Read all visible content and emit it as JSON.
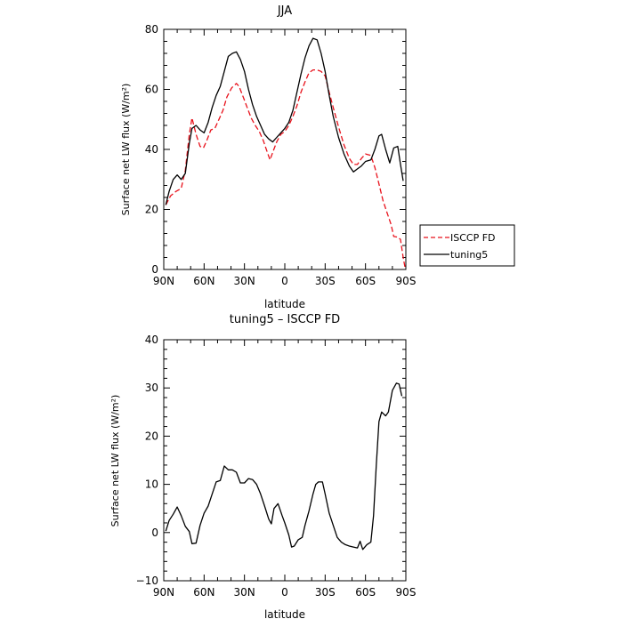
{
  "chart_data": [
    {
      "type": "line",
      "title": "JJA",
      "xlabel": "latitude",
      "ylabel": "Surface net LW flux (W/m²)",
      "xlim": [
        90,
        -90
      ],
      "ylim": [
        0,
        80
      ],
      "x_ticks": [
        90,
        60,
        30,
        0,
        -30,
        -60,
        -90
      ],
      "x_tick_labels": [
        "90N",
        "60N",
        "30N",
        "0",
        "30S",
        "60S",
        "90S"
      ],
      "y_ticks": [
        0,
        20,
        40,
        60,
        80
      ],
      "y_tick_labels": [
        "0",
        "20",
        "40",
        "60",
        "80"
      ],
      "legend": "outside-right",
      "series": [
        {
          "name": "ISCCP FD",
          "color": "#e8111b",
          "dash": true,
          "points": [
            [
              88.5,
              21.5
            ],
            [
              85,
              24.5
            ],
            [
              81,
              26
            ],
            [
              77,
              27
            ],
            [
              74,
              33
            ],
            [
              71,
              45
            ],
            [
              69,
              50.5
            ],
            [
              66,
              45
            ],
            [
              63,
              41
            ],
            [
              60.5,
              40.5
            ],
            [
              58,
              43
            ],
            [
              55,
              46.5
            ],
            [
              52,
              47
            ],
            [
              49,
              50
            ],
            [
              46,
              53
            ],
            [
              43,
              57.5
            ],
            [
              39.5,
              60.5
            ],
            [
              36,
              62
            ],
            [
              34,
              61
            ],
            [
              31,
              57.5
            ],
            [
              28,
              54
            ],
            [
              25,
              50.5
            ],
            [
              22,
              48
            ],
            [
              19,
              46
            ],
            [
              16,
              43
            ],
            [
              13,
              39
            ],
            [
              11,
              36.5
            ],
            [
              9,
              39
            ],
            [
              6,
              42.5
            ],
            [
              3,
              45
            ],
            [
              0,
              46
            ],
            [
              -3,
              48
            ],
            [
              -6,
              51
            ],
            [
              -9,
              54.5
            ],
            [
              -12,
              59
            ],
            [
              -15,
              62.5
            ],
            [
              -18,
              65.5
            ],
            [
              -21,
              66.5
            ],
            [
              -24,
              66.5
            ],
            [
              -27,
              66
            ],
            [
              -30,
              64.5
            ],
            [
              -33,
              59
            ],
            [
              -36,
              54
            ],
            [
              -40,
              47.5
            ],
            [
              -44,
              41.5
            ],
            [
              -48,
              37
            ],
            [
              -51,
              35
            ],
            [
              -54,
              35
            ],
            [
              -57,
              37
            ],
            [
              -60,
              38.5
            ],
            [
              -64,
              38
            ],
            [
              -67,
              34
            ],
            [
              -70,
              28.5
            ],
            [
              -73,
              23
            ],
            [
              -76,
              19
            ],
            [
              -79,
              15
            ],
            [
              -81,
              11
            ],
            [
              -84,
              10.8
            ],
            [
              -86,
              10
            ],
            [
              -88,
              4
            ],
            [
              -89.5,
              0.5
            ]
          ]
        },
        {
          "name": "tuning5",
          "color": "#000000",
          "dash": false,
          "points": [
            [
              88.5,
              21.5
            ],
            [
              86,
              26
            ],
            [
              83,
              30
            ],
            [
              80,
              31.5
            ],
            [
              77,
              30
            ],
            [
              74,
              32
            ],
            [
              71,
              42
            ],
            [
              69,
              47
            ],
            [
              66,
              48
            ],
            [
              63,
              46.5
            ],
            [
              60,
              45.5
            ],
            [
              57,
              49
            ],
            [
              54,
              54
            ],
            [
              51,
              58
            ],
            [
              48,
              61
            ],
            [
              45,
              66
            ],
            [
              42,
              71
            ],
            [
              39,
              72
            ],
            [
              36,
              72.5
            ],
            [
              33,
              70
            ],
            [
              30,
              66
            ],
            [
              27,
              60
            ],
            [
              24,
              55
            ],
            [
              21,
              51
            ],
            [
              18,
              48
            ],
            [
              15,
              45
            ],
            [
              12,
              43.5
            ],
            [
              9,
              42.5
            ],
            [
              6,
              44
            ],
            [
              3,
              45.5
            ],
            [
              0,
              47
            ],
            [
              -3,
              49
            ],
            [
              -6,
              53
            ],
            [
              -9,
              59
            ],
            [
              -12,
              65
            ],
            [
              -15,
              70.5
            ],
            [
              -18,
              74.5
            ],
            [
              -21,
              77
            ],
            [
              -24,
              76.5
            ],
            [
              -27,
              72
            ],
            [
              -30,
              66
            ],
            [
              -33,
              58
            ],
            [
              -36,
              51
            ],
            [
              -40,
              44
            ],
            [
              -44,
              38.5
            ],
            [
              -48,
              34.5
            ],
            [
              -51,
              32.5
            ],
            [
              -54,
              33.5
            ],
            [
              -57,
              34.5
            ],
            [
              -60,
              36
            ],
            [
              -64,
              36.5
            ],
            [
              -67,
              40
            ],
            [
              -70,
              44.5
            ],
            [
              -72,
              45
            ],
            [
              -75,
              40
            ],
            [
              -78,
              35.5
            ],
            [
              -81,
              40.5
            ],
            [
              -84,
              41
            ],
            [
              -86,
              35
            ],
            [
              -88,
              29.5
            ]
          ]
        }
      ]
    },
    {
      "type": "line",
      "title": "tuning5 – ISCCP FD",
      "xlabel": "latitude",
      "ylabel": "Surface net LW flux (W/m²)",
      "xlim": [
        90,
        -90
      ],
      "ylim": [
        -10,
        40
      ],
      "x_ticks": [
        90,
        60,
        30,
        0,
        -30,
        -60,
        -90
      ],
      "x_tick_labels": [
        "90N",
        "60N",
        "30N",
        "0",
        "30S",
        "60S",
        "90S"
      ],
      "y_ticks": [
        -10,
        0,
        10,
        20,
        30,
        40
      ],
      "y_tick_labels": [
        "−10",
        "0",
        "10",
        "20",
        "30",
        "40"
      ],
      "series": [
        {
          "color": "#000000",
          "dash": false,
          "points": [
            [
              88.5,
              0.3
            ],
            [
              86,
              2.5
            ],
            [
              83,
              3.8
            ],
            [
              80,
              5.3
            ],
            [
              77,
              3.5
            ],
            [
              74,
              1.3
            ],
            [
              71,
              0.2
            ],
            [
              69,
              -2.3
            ],
            [
              66,
              -2.2
            ],
            [
              63,
              1.5
            ],
            [
              60,
              4
            ],
            [
              57,
              5.5
            ],
            [
              54,
              8
            ],
            [
              51,
              10.5
            ],
            [
              48,
              10.8
            ],
            [
              45,
              13.8
            ],
            [
              42,
              13
            ],
            [
              39,
              13
            ],
            [
              36,
              12.5
            ],
            [
              33,
              10.3
            ],
            [
              30,
              10.3
            ],
            [
              27,
              11.2
            ],
            [
              24,
              11
            ],
            [
              21,
              10
            ],
            [
              18,
              8
            ],
            [
              15,
              5.5
            ],
            [
              12,
              2.8
            ],
            [
              10,
              1.8
            ],
            [
              8,
              5
            ],
            [
              5,
              6
            ],
            [
              2,
              3.5
            ],
            [
              0,
              2
            ],
            [
              -3,
              -0.5
            ],
            [
              -5,
              -3
            ],
            [
              -7,
              -2.8
            ],
            [
              -10,
              -1.5
            ],
            [
              -13,
              -1
            ],
            [
              -15,
              1.5
            ],
            [
              -18,
              4.5
            ],
            [
              -21,
              8
            ],
            [
              -23,
              10
            ],
            [
              -25,
              10.5
            ],
            [
              -28,
              10.5
            ],
            [
              -30,
              8
            ],
            [
              -33,
              4
            ],
            [
              -36,
              1.5
            ],
            [
              -39,
              -1
            ],
            [
              -42,
              -2
            ],
            [
              -45,
              -2.5
            ],
            [
              -48,
              -2.8
            ],
            [
              -51,
              -3
            ],
            [
              -54,
              -3.2
            ],
            [
              -56,
              -1.8
            ],
            [
              -58,
              -3.5
            ],
            [
              -61,
              -2.5
            ],
            [
              -64,
              -2
            ],
            [
              -66,
              3.5
            ],
            [
              -68,
              14
            ],
            [
              -70,
              23
            ],
            [
              -72,
              25
            ],
            [
              -75,
              24.2
            ],
            [
              -77,
              25
            ],
            [
              -80,
              29.5
            ],
            [
              -83,
              31
            ],
            [
              -85,
              30.8
            ],
            [
              -87,
              28.3
            ]
          ]
        }
      ]
    }
  ]
}
